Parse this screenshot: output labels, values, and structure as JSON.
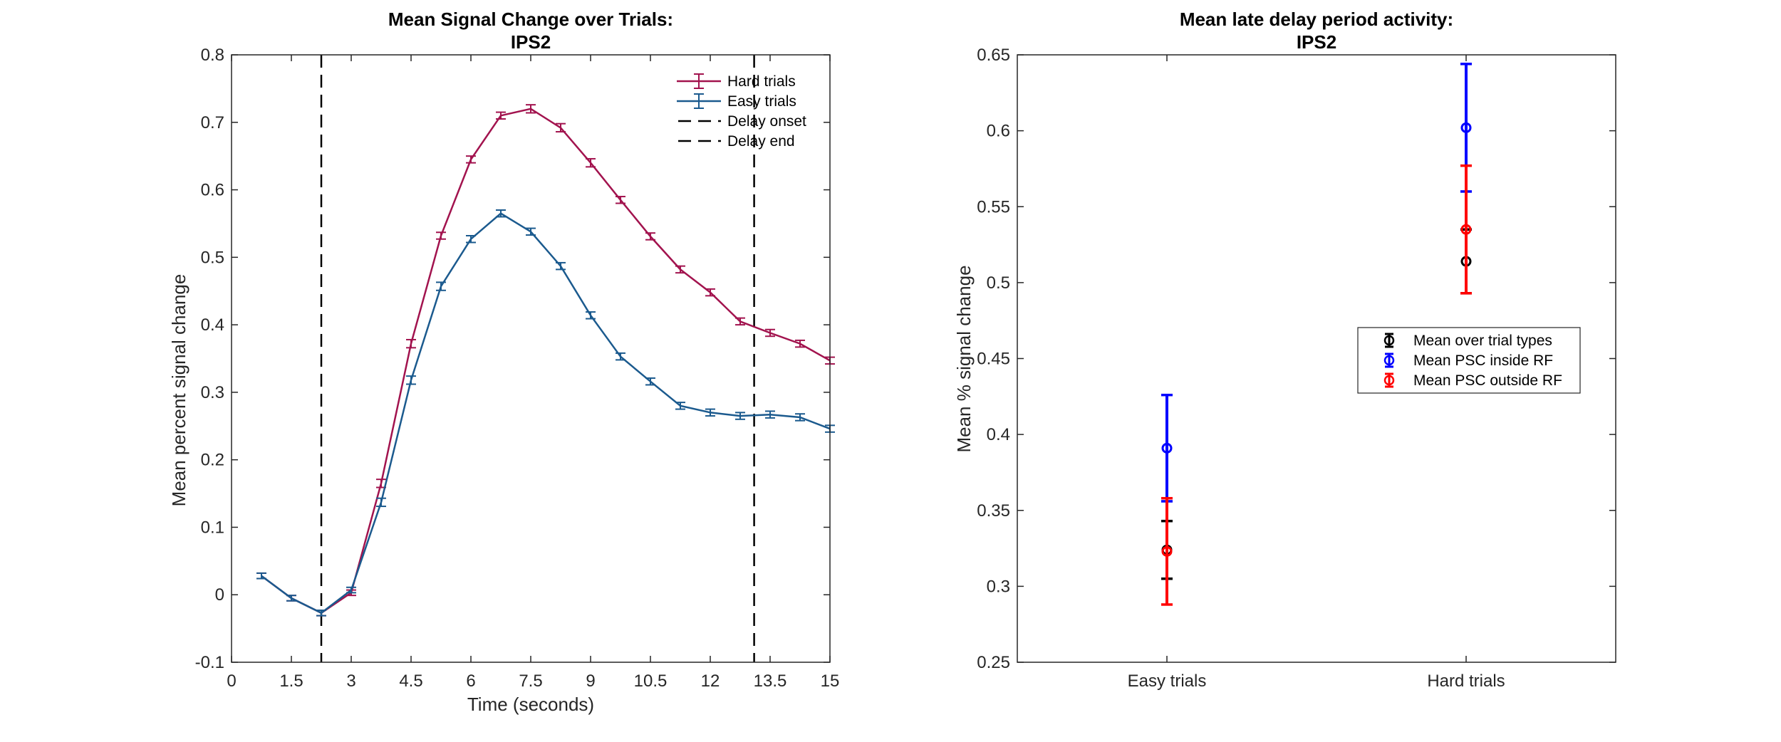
{
  "chart_data": [
    {
      "type": "line",
      "title": "Mean Signal Change over Trials:",
      "subtitle": "IPS2",
      "xlabel": "Time (seconds)",
      "ylabel": "Mean percent signal change",
      "xlim": [
        0,
        15
      ],
      "ylim": [
        -0.1,
        0.8
      ],
      "xticks": [
        "0",
        "1.5",
        "3",
        "4.5",
        "6",
        "7.5",
        "9",
        "10.5",
        "12",
        "13.5",
        "15"
      ],
      "xtick_values": [
        0,
        1.5,
        3,
        4.5,
        6,
        7.5,
        9,
        10.5,
        12,
        13.5,
        15
      ],
      "yticks": [
        "-0.1",
        "0",
        "0.1",
        "0.2",
        "0.3",
        "0.4",
        "0.5",
        "0.6",
        "0.7",
        "0.8"
      ],
      "ytick_values": [
        -0.1,
        0,
        0.1,
        0.2,
        0.3,
        0.4,
        0.5,
        0.6,
        0.7,
        0.8
      ],
      "grid": false,
      "legend_position": "top-right",
      "x": [
        0.75,
        1.5,
        2.25,
        3.0,
        3.75,
        4.5,
        5.25,
        6.0,
        6.75,
        7.5,
        8.25,
        9.0,
        9.75,
        10.5,
        11.25,
        12.0,
        12.75,
        13.5,
        14.25,
        15.0
      ],
      "series": [
        {
          "name": "Hard trials",
          "color": "#a2134e",
          "values": [
            0.028,
            -0.005,
            -0.027,
            0.003,
            0.165,
            0.372,
            0.532,
            0.645,
            0.71,
            0.72,
            0.692,
            0.64,
            0.585,
            0.531,
            0.482,
            0.448,
            0.405,
            0.388,
            0.372,
            0.347
          ],
          "errors": [
            0.004,
            0.004,
            0.004,
            0.004,
            0.006,
            0.006,
            0.005,
            0.005,
            0.005,
            0.006,
            0.006,
            0.006,
            0.005,
            0.005,
            0.005,
            0.005,
            0.005,
            0.005,
            0.005,
            0.005
          ]
        },
        {
          "name": "Easy trials",
          "color": "#1b5a8e",
          "values": [
            0.028,
            -0.005,
            -0.027,
            0.007,
            0.137,
            0.318,
            0.457,
            0.527,
            0.565,
            0.538,
            0.487,
            0.414,
            0.353,
            0.316,
            0.28,
            0.27,
            0.265,
            0.267,
            0.263,
            0.246
          ],
          "errors": [
            0.004,
            0.004,
            0.004,
            0.004,
            0.006,
            0.006,
            0.006,
            0.005,
            0.005,
            0.005,
            0.005,
            0.005,
            0.005,
            0.005,
            0.005,
            0.005,
            0.005,
            0.005,
            0.005,
            0.005
          ]
        }
      ],
      "vlines": [
        {
          "name": "Delay onset",
          "x": 2.25
        },
        {
          "name": "Delay end",
          "x": 13.1
        }
      ]
    },
    {
      "type": "scatter",
      "title": "Mean late delay period activity:",
      "subtitle": "IPS2",
      "xlabel": "",
      "ylabel": "Mean % signal change",
      "categories": [
        "Easy trials",
        "Hard trials"
      ],
      "xlim": [
        0.5,
        2.5
      ],
      "ylim": [
        0.25,
        0.65
      ],
      "yticks": [
        "0.25",
        "0.3",
        "0.35",
        "0.4",
        "0.45",
        "0.5",
        "0.55",
        "0.6",
        "0.65"
      ],
      "ytick_values": [
        0.25,
        0.3,
        0.35,
        0.4,
        0.45,
        0.5,
        0.55,
        0.6,
        0.65
      ],
      "grid": false,
      "legend_position": "center-right",
      "series": [
        {
          "name": "Mean over trial types",
          "color": "#000000",
          "values": [
            0.324,
            0.514
          ],
          "errors": [
            0.019,
            0.021
          ]
        },
        {
          "name": "Mean PSC inside RF",
          "color": "#0000ff",
          "values": [
            0.391,
            0.602
          ],
          "errors": [
            0.035,
            0.042
          ]
        },
        {
          "name": "Mean PSC outside RF",
          "color": "#ff0000",
          "values": [
            0.323,
            0.535
          ],
          "errors": [
            0.035,
            0.042
          ]
        }
      ]
    }
  ]
}
